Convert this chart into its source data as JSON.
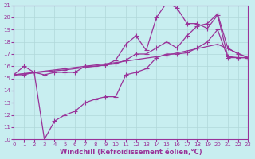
{
  "xlabel": "Windchill (Refroidissement éolien,°C)",
  "xlim": [
    0,
    23
  ],
  "ylim": [
    10,
    21
  ],
  "xticks": [
    0,
    1,
    2,
    3,
    4,
    5,
    6,
    7,
    8,
    9,
    10,
    11,
    12,
    13,
    14,
    15,
    16,
    17,
    18,
    19,
    20,
    21,
    22,
    23
  ],
  "yticks": [
    10,
    11,
    12,
    13,
    14,
    15,
    16,
    17,
    18,
    19,
    20,
    21
  ],
  "bg_color": "#c8eef0",
  "grid_color": "#b0d8da",
  "line_color": "#993399",
  "line1_x": [
    0,
    1,
    2,
    3,
    4,
    5,
    6,
    7,
    8,
    9,
    10,
    11,
    12,
    13,
    14,
    15,
    16,
    17,
    18,
    19,
    20,
    21,
    22,
    23
  ],
  "line1_y": [
    15.3,
    16.0,
    15.5,
    15.3,
    15.5,
    15.5,
    15.5,
    16.0,
    16.0,
    16.1,
    16.5,
    17.8,
    18.5,
    17.3,
    20.0,
    21.2,
    20.8,
    19.5,
    19.5,
    19.1,
    20.2,
    16.8,
    16.7,
    16.7
  ],
  "line2_x": [
    0,
    1,
    2,
    3,
    4,
    5,
    6,
    7,
    8,
    9,
    10,
    11,
    12,
    13,
    14,
    15,
    16,
    17,
    18,
    19,
    20,
    21,
    22,
    23
  ],
  "line2_y": [
    15.3,
    15.3,
    15.5,
    10.0,
    11.5,
    12.0,
    12.3,
    13.0,
    13.3,
    13.5,
    13.5,
    15.3,
    15.5,
    15.8,
    16.7,
    17.0,
    17.0,
    17.1,
    17.5,
    18.0,
    19.0,
    16.7,
    16.7,
    16.7
  ],
  "line3_x": [
    0,
    5,
    10,
    11,
    12,
    13,
    14,
    15,
    16,
    17,
    18,
    19,
    20,
    21,
    22,
    23
  ],
  "line3_y": [
    15.3,
    15.7,
    16.2,
    16.5,
    17.0,
    17.0,
    17.5,
    18.0,
    17.5,
    18.5,
    19.3,
    19.5,
    20.3,
    17.5,
    17.0,
    16.7
  ],
  "line4_x": [
    0,
    5,
    10,
    15,
    20,
    23
  ],
  "line4_y": [
    15.3,
    15.8,
    16.3,
    16.9,
    17.8,
    16.7
  ],
  "marker": "+",
  "markersize": 4,
  "linewidth": 0.9,
  "tick_fontsize": 5,
  "label_fontsize": 6
}
